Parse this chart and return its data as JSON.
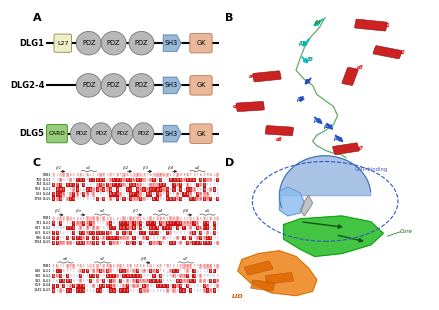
{
  "background_color": "#ffffff",
  "panel_label_fontsize": 8,
  "dlg_names": [
    "DLG1",
    "DLG2-4",
    "DLG5"
  ],
  "seq_rows": [
    "PDB1",
    "DLG1",
    "DLG2",
    "DLG3",
    "DLG4",
    "DLG5"
  ],
  "seq_numbers_b1": [
    "",
    "760",
    "784",
    "824",
    "533",
    "1798"
  ],
  "seq_numbers_b2": [
    "",
    "781",
    "847",
    "869",
    "596",
    "1784"
  ],
  "seq_numbers_b3": [
    "",
    "846",
    "910",
    "932",
    "659",
    "1849"
  ],
  "gray_oval": "#b8b8b8",
  "sh3_color": "#98b8d8",
  "gk_color": "#e8b898",
  "l27_color": "#eeeec8",
  "card_color": "#98cc78"
}
